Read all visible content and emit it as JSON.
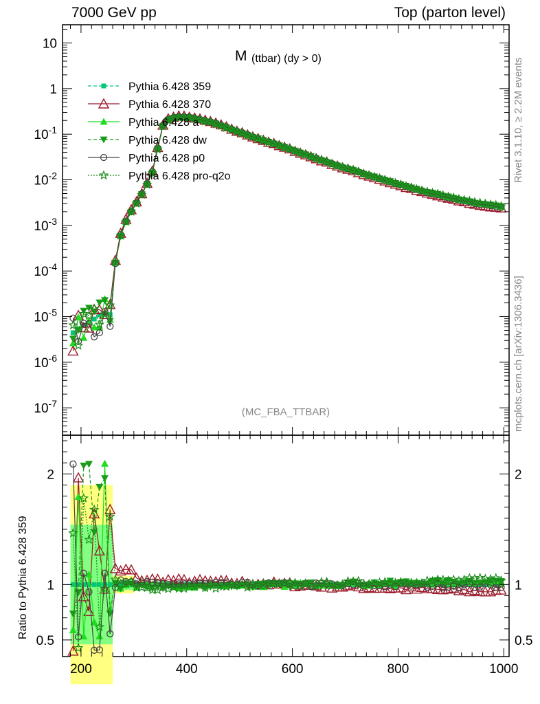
{
  "header": {
    "left": "7000 GeV pp",
    "right": "Top (parton level)"
  },
  "side_labels": {
    "rivet": "Rivet 3.1.10, ≥ 2.2M events",
    "mcplots": "mcplots.cern.ch [arXiv:1306.3436]"
  },
  "chart_data": {
    "type": "line",
    "title_main": "M",
    "title_sub": "(ttbar) (dy > 0)",
    "watermark": "(MC_FBA_TTBAR)",
    "ratio_ylabel": "Ratio to Pythia 6.428 359",
    "xlim": [
      165,
      1010
    ],
    "main_ylim_log10": [
      -7.6,
      1.4
    ],
    "ratio_ylim": [
      0.35,
      2.35
    ],
    "x_ticks": [
      "200",
      "400",
      "600",
      "800",
      "1000"
    ],
    "y_ticks": [
      "10",
      "1",
      "10^-1",
      "10^-2",
      "10^-3",
      "10^-4",
      "10^-5",
      "10^-6",
      "10^-7"
    ],
    "ratio_ticks": [
      "0.5",
      "1",
      "2"
    ],
    "series": [
      {
        "name": "Pythia 6.428 359",
        "color": "#00c878",
        "marker": "square",
        "dash": "dashed"
      },
      {
        "name": "Pythia 6.428 370",
        "color": "#9b1a2a",
        "marker": "triangle-open",
        "dash": "solid"
      },
      {
        "name": "Pythia 6.428 a",
        "color": "#1edc1e",
        "marker": "triangle",
        "dash": "solid"
      },
      {
        "name": "Pythia 6.428 dw",
        "color": "#1a9b1a",
        "marker": "triangle-down",
        "dash": "dashed"
      },
      {
        "name": "Pythia 6.428 p0",
        "color": "#444444",
        "marker": "circle-open",
        "dash": "solid"
      },
      {
        "name": "Pythia 6.428 pro-q2o",
        "color": "#1a8c1a",
        "marker": "star-open",
        "dash": "dotted"
      }
    ],
    "ref_points": [
      [
        180,
        4e-06
      ],
      [
        200,
        6e-06
      ],
      [
        220,
        8e-06
      ],
      [
        240,
        1.2e-05
      ],
      [
        255,
        1.1e-05
      ],
      [
        265,
        0.00015
      ],
      [
        275,
        0.0006
      ],
      [
        285,
        0.0012
      ],
      [
        300,
        0.0025
      ],
      [
        320,
        0.006
      ],
      [
        340,
        0.02
      ],
      [
        350,
        0.12
      ],
      [
        360,
        0.2
      ],
      [
        380,
        0.24
      ],
      [
        400,
        0.24
      ],
      [
        450,
        0.18
      ],
      [
        500,
        0.11
      ],
      [
        550,
        0.07
      ],
      [
        600,
        0.045
      ],
      [
        650,
        0.028
      ],
      [
        700,
        0.018
      ],
      [
        750,
        0.012
      ],
      [
        800,
        0.008
      ],
      [
        850,
        0.0055
      ],
      [
        900,
        0.004
      ],
      [
        950,
        0.003
      ],
      [
        1000,
        0.0025
      ]
    ],
    "ratio_anchor_points": [
      [
        185,
        1.0
      ],
      [
        215,
        1.0
      ],
      [
        240,
        1.0
      ],
      [
        255,
        1.0
      ],
      [
        270,
        1.0
      ],
      [
        300,
        1.0
      ],
      [
        400,
        1.0
      ],
      [
        600,
        1.0
      ],
      [
        800,
        1.0
      ],
      [
        1000,
        1.0
      ]
    ]
  }
}
